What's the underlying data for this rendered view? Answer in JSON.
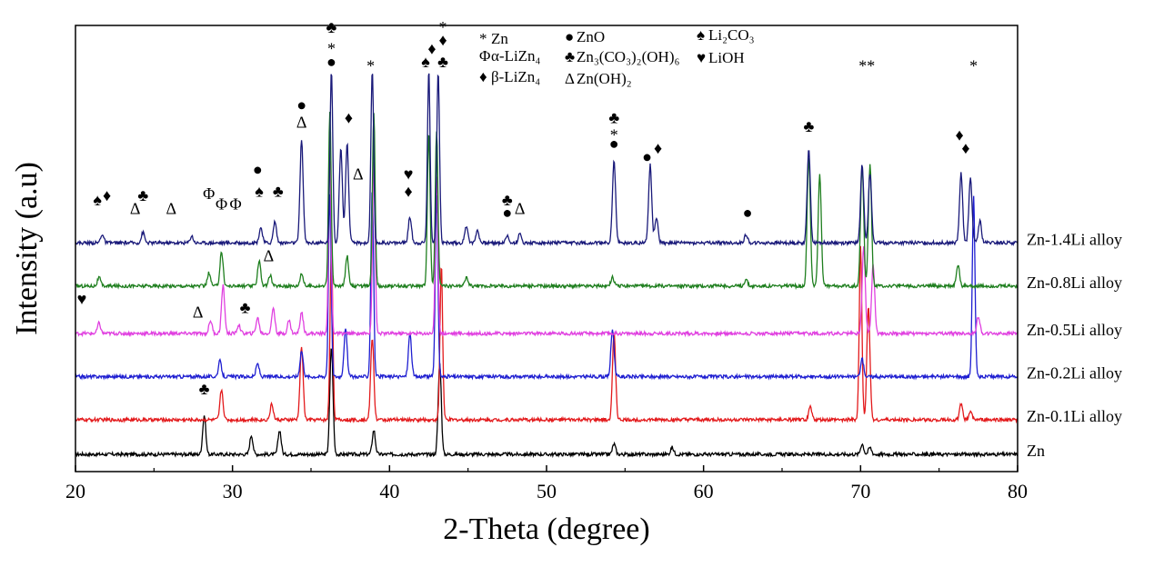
{
  "chart_data": {
    "type": "line",
    "xlabel": "2-Theta (degree)",
    "ylabel": "Intensity (a.u)",
    "xlim": [
      20,
      80
    ],
    "x_ticks": [
      20,
      30,
      40,
      50,
      60,
      70,
      80
    ],
    "grid": false,
    "legend_placement": "top",
    "series": [
      {
        "name": "Zn",
        "color": "#000000",
        "baseline": 0,
        "peaks": [
          [
            28.2,
            45
          ],
          [
            31.2,
            22
          ],
          [
            33.0,
            28
          ],
          [
            36.3,
            125
          ],
          [
            39.0,
            28
          ],
          [
            43.2,
            105
          ],
          [
            54.3,
            12
          ],
          [
            58.0,
            8
          ],
          [
            70.1,
            12
          ],
          [
            70.6,
            8
          ]
        ]
      },
      {
        "name": "Zn-0.1Li alloy",
        "color": "#e31a1c",
        "baseline": 40,
        "peaks": [
          [
            29.3,
            35
          ],
          [
            32.5,
            18
          ],
          [
            34.4,
            85
          ],
          [
            36.3,
            200
          ],
          [
            38.9,
            95
          ],
          [
            43.3,
            180
          ],
          [
            54.3,
            100
          ],
          [
            66.8,
            15
          ],
          [
            70.0,
            200
          ],
          [
            70.5,
            130
          ],
          [
            76.4,
            18
          ],
          [
            77.0,
            10
          ]
        ]
      },
      {
        "name": "Zn-0.2Li alloy",
        "color": "#1f1fd1",
        "baseline": 90,
        "peaks": [
          [
            29.2,
            18
          ],
          [
            31.6,
            15
          ],
          [
            34.4,
            30
          ],
          [
            36.2,
            210
          ],
          [
            37.2,
            55
          ],
          [
            38.9,
            220
          ],
          [
            41.3,
            50
          ],
          [
            43.0,
            210
          ],
          [
            54.2,
            55
          ],
          [
            70.1,
            20
          ],
          [
            77.2,
            210
          ]
        ]
      },
      {
        "name": "Zn-0.5Li alloy",
        "color": "#e040e0",
        "baseline": 140,
        "peaks": [
          [
            21.5,
            12
          ],
          [
            28.6,
            15
          ],
          [
            29.4,
            55
          ],
          [
            30.4,
            10
          ],
          [
            31.6,
            18
          ],
          [
            32.6,
            30
          ],
          [
            33.6,
            15
          ],
          [
            34.4,
            25
          ],
          [
            36.2,
            200
          ],
          [
            39.0,
            200
          ],
          [
            43.0,
            180
          ],
          [
            70.2,
            100
          ],
          [
            70.8,
            80
          ],
          [
            77.5,
            20
          ]
        ]
      },
      {
        "name": "Zn-0.8Li alloy",
        "color": "#1f7f1f",
        "baseline": 195,
        "peaks": [
          [
            21.5,
            10
          ],
          [
            28.5,
            15
          ],
          [
            29.3,
            40
          ],
          [
            31.7,
            30
          ],
          [
            32.4,
            12
          ],
          [
            34.4,
            15
          ],
          [
            36.2,
            200
          ],
          [
            37.3,
            35
          ],
          [
            39.0,
            200
          ],
          [
            42.5,
            180
          ],
          [
            43.0,
            180
          ],
          [
            44.9,
            10
          ],
          [
            54.2,
            10
          ],
          [
            62.7,
            8
          ],
          [
            66.7,
            150
          ],
          [
            67.4,
            130
          ],
          [
            70.1,
            140
          ],
          [
            70.6,
            140
          ],
          [
            76.2,
            25
          ]
        ]
      },
      {
        "name": "Zn-1.4Li alloy",
        "color": "#1a1a7a",
        "baseline": 245,
        "peaks": [
          [
            21.7,
            10
          ],
          [
            24.3,
            12
          ],
          [
            27.4,
            8
          ],
          [
            31.8,
            18
          ],
          [
            32.7,
            25
          ],
          [
            34.4,
            120
          ],
          [
            36.3,
            200
          ],
          [
            36.9,
            110
          ],
          [
            37.3,
            115
          ],
          [
            38.9,
            200
          ],
          [
            41.3,
            30
          ],
          [
            42.5,
            200
          ],
          [
            43.1,
            200
          ],
          [
            44.9,
            20
          ],
          [
            45.6,
            15
          ],
          [
            47.5,
            8
          ],
          [
            48.3,
            10
          ],
          [
            54.3,
            95
          ],
          [
            56.6,
            90
          ],
          [
            57.0,
            30
          ],
          [
            62.7,
            10
          ],
          [
            66.7,
            110
          ],
          [
            70.1,
            90
          ],
          [
            70.6,
            80
          ],
          [
            76.4,
            80
          ],
          [
            77.0,
            75
          ],
          [
            77.6,
            25
          ]
        ]
      }
    ],
    "legend": [
      {
        "symbol": "*",
        "color": "#000000",
        "label": "Zn"
      },
      {
        "symbol": "●",
        "color": "#000000",
        "label": "ZnO"
      },
      {
        "symbol": "♠",
        "color": "#3ad43a",
        "label": "Li₂CO₃"
      },
      {
        "symbol": "Φ",
        "color": "#000000",
        "label": "α-LiZn₄"
      },
      {
        "symbol": "♣",
        "color": "#e31a1c",
        "label": "Zn₃(CO₃)₂(OH)₆"
      },
      {
        "symbol": "♥",
        "color": "#1a1aa0",
        "label": "LiOH"
      },
      {
        "symbol": "♦",
        "color": "#ffd21f",
        "label": "β-LiZn₄"
      },
      {
        "symbol": "Δ",
        "color": "#000000",
        "label": "Zn(OH)₂"
      }
    ],
    "annotations": [
      {
        "symbol": "♠",
        "color": "#3ad43a",
        "x": 21.4,
        "y": 295
      },
      {
        "symbol": "♦",
        "color": "#ffd21f",
        "x": 22.0,
        "y": 300
      },
      {
        "symbol": "Δ",
        "color": "#000000",
        "x": 23.8,
        "y": 285
      },
      {
        "symbol": "♣",
        "color": "#e31a1c",
        "x": 24.3,
        "y": 300
      },
      {
        "symbol": "Δ",
        "color": "#000000",
        "x": 26.1,
        "y": 285
      },
      {
        "symbol": "Φ",
        "color": "#000000",
        "x": 28.5,
        "y": 302
      },
      {
        "symbol": "Φ",
        "color": "#000000",
        "x": 29.3,
        "y": 290
      },
      {
        "symbol": "Φ",
        "color": "#000000",
        "x": 30.2,
        "y": 290
      },
      {
        "symbol": "●",
        "color": "#000000",
        "x": 31.6,
        "y": 330
      },
      {
        "symbol": "♠",
        "color": "#3ad43a",
        "x": 31.7,
        "y": 305
      },
      {
        "symbol": "♣",
        "color": "#e31a1c",
        "x": 32.9,
        "y": 305
      },
      {
        "symbol": "●",
        "color": "#000000",
        "x": 34.4,
        "y": 405
      },
      {
        "symbol": "Δ",
        "color": "#000000",
        "x": 34.4,
        "y": 385
      },
      {
        "symbol": "♣",
        "color": "#e31a1c",
        "x": 36.3,
        "y": 495
      },
      {
        "symbol": "*",
        "color": "#000000",
        "x": 36.3,
        "y": 470
      },
      {
        "symbol": "●",
        "color": "#000000",
        "x": 36.3,
        "y": 455
      },
      {
        "symbol": "♦",
        "color": "#ffd21f",
        "x": 37.4,
        "y": 390
      },
      {
        "symbol": "Δ",
        "color": "#000000",
        "x": 38.0,
        "y": 325
      },
      {
        "symbol": "*",
        "color": "#000000",
        "x": 38.8,
        "y": 450
      },
      {
        "symbol": "♥",
        "color": "#1a1aa0",
        "x": 41.2,
        "y": 325
      },
      {
        "symbol": "♦",
        "color": "#ffd21f",
        "x": 41.2,
        "y": 305
      },
      {
        "symbol": "♠",
        "color": "#3ad43a",
        "x": 42.3,
        "y": 455
      },
      {
        "symbol": "♦",
        "color": "#ffd21f",
        "x": 42.7,
        "y": 470
      },
      {
        "symbol": "*",
        "color": "#000000",
        "x": 43.4,
        "y": 495
      },
      {
        "symbol": "♦",
        "color": "#ffd21f",
        "x": 43.4,
        "y": 480
      },
      {
        "symbol": "♣",
        "color": "#e31a1c",
        "x": 43.4,
        "y": 455
      },
      {
        "symbol": "♣",
        "color": "#e31a1c",
        "x": 47.5,
        "y": 295
      },
      {
        "symbol": "●",
        "color": "#000000",
        "x": 47.5,
        "y": 280
      },
      {
        "symbol": "Δ",
        "color": "#000000",
        "x": 48.3,
        "y": 285
      },
      {
        "symbol": "♣",
        "color": "#e31a1c",
        "x": 54.3,
        "y": 390
      },
      {
        "symbol": "*",
        "color": "#000000",
        "x": 54.3,
        "y": 370
      },
      {
        "symbol": "●",
        "color": "#000000",
        "x": 54.3,
        "y": 360
      },
      {
        "symbol": "●",
        "color": "#000000",
        "x": 56.4,
        "y": 345
      },
      {
        "symbol": "♦",
        "color": "#ffd21f",
        "x": 57.1,
        "y": 355
      },
      {
        "symbol": "●",
        "color": "#000000",
        "x": 62.8,
        "y": 280
      },
      {
        "symbol": "♣",
        "color": "#e31a1c",
        "x": 66.7,
        "y": 380
      },
      {
        "symbol": "**",
        "color": "#000000",
        "x": 70.4,
        "y": 450
      },
      {
        "symbol": "♦",
        "color": "#ffd21f",
        "x": 76.3,
        "y": 370
      },
      {
        "symbol": "♦",
        "color": "#ffd21f",
        "x": 76.7,
        "y": 355
      },
      {
        "symbol": "*",
        "color": "#000000",
        "x": 77.2,
        "y": 450
      },
      {
        "symbol": "♣",
        "color": "#e31a1c",
        "x": 28.2,
        "y": 76
      },
      {
        "symbol": "Δ",
        "color": "#000000",
        "x": 32.3,
        "y": 230
      },
      {
        "symbol": "♥",
        "color": "#1a1aa0",
        "x": 20.4,
        "y": 180
      },
      {
        "symbol": "Δ",
        "color": "#000000",
        "x": 27.8,
        "y": 165
      },
      {
        "symbol": "♣",
        "color": "#e31a1c",
        "x": 30.8,
        "y": 170
      }
    ]
  }
}
